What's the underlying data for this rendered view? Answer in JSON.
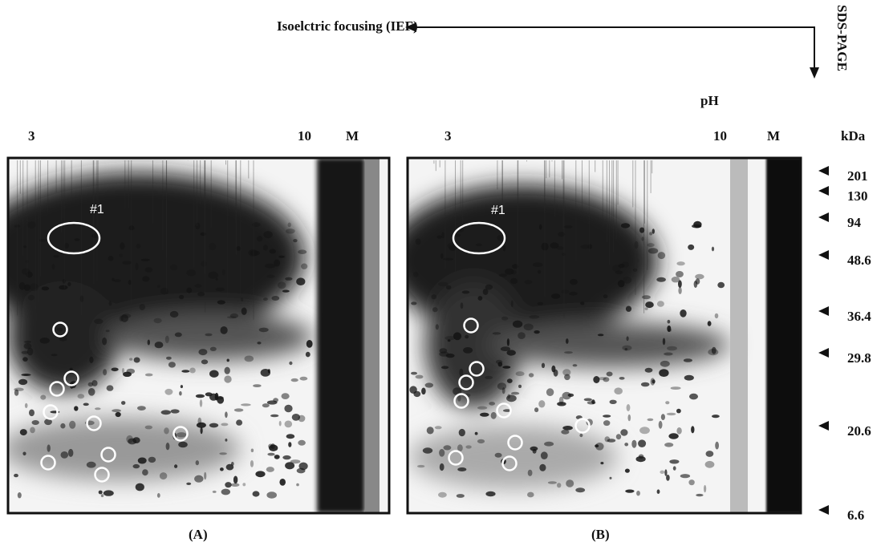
{
  "header": {
    "axis_ief": "Isoelctric focusing (IEF)",
    "axis_sds": "SDS-PAGE",
    "ph_label": "pH",
    "kda_label": "kDa"
  },
  "panels": [
    {
      "label": "(A)",
      "ph_low": 3,
      "ph_high": 10,
      "marker_lane": "M",
      "spot_label": "#1"
    },
    {
      "label": "(B)",
      "ph_low": 3,
      "ph_high": 10,
      "marker_lane": "M",
      "spot_label": "#1"
    }
  ],
  "markers": [
    201,
    130,
    94,
    48.6,
    36.4,
    29.8,
    20.6,
    6.6
  ]
}
